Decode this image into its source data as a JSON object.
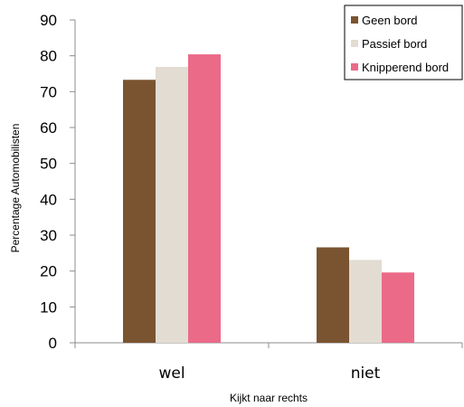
{
  "chart_data": {
    "type": "bar",
    "categories": [
      "wel",
      "niet"
    ],
    "series": [
      {
        "name": "Geen bord",
        "values": [
          73.3,
          26.6
        ],
        "color": "#7a5430"
      },
      {
        "name": "Passief bord",
        "values": [
          76.9,
          23.1
        ],
        "color": "#e3dcd2"
      },
      {
        "name": "Knipperend bord",
        "values": [
          80.4,
          19.6
        ],
        "color": "#eb6a88"
      }
    ],
    "xlabel": "Kijkt naar rechts",
    "ylabel": "Percentage Automobilisten",
    "ylim": [
      0,
      90
    ],
    "yticks": [
      0,
      10,
      20,
      30,
      40,
      50,
      60,
      70,
      80,
      90
    ],
    "grid": false,
    "legend_position": "top-right"
  }
}
